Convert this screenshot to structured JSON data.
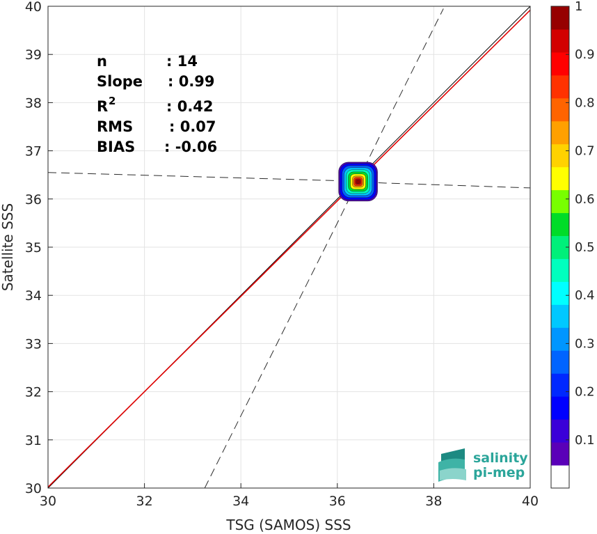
{
  "chart_data": {
    "type": "scatter",
    "xlabel": "TSG (SAMOS) SSS",
    "ylabel": "Satellite SSS",
    "xlim": [
      30,
      40
    ],
    "ylim": [
      30,
      40
    ],
    "xticks": [
      "30",
      "32",
      "34",
      "36",
      "38",
      "40"
    ],
    "yticks": [
      "30",
      "31",
      "32",
      "33",
      "34",
      "35",
      "36",
      "37",
      "38",
      "39",
      "40"
    ],
    "grid": true,
    "stats": [
      {
        "label": "n",
        "value": ": 14"
      },
      {
        "label": "Slope",
        "value": ": 0.99"
      },
      {
        "label": "R",
        "sup": "2",
        "value": ": 0.42"
      },
      {
        "label": "RMS",
        "value": ": 0.07"
      },
      {
        "label": "BIAS",
        "value": ": -0.06"
      }
    ],
    "identity_line": {
      "x": [
        30,
        40
      ],
      "y": [
        30,
        40
      ],
      "color": "#000000"
    },
    "fit_line": {
      "x": [
        30,
        40
      ],
      "y": [
        30.02,
        39.92
      ],
      "color": "#e00000"
    },
    "dashed_envelope_1": {
      "x": [
        33.25,
        36.0,
        37.0,
        38.2
      ],
      "y": [
        30,
        35.5,
        37.55,
        39.95
      ]
    },
    "dashed_envelope_2": {
      "x": [
        30,
        36.0,
        37.0,
        40
      ],
      "y": [
        36.55,
        36.38,
        36.33,
        36.23
      ]
    },
    "density_center": {
      "x": 36.43,
      "y": 36.36
    },
    "colorbar": {
      "ticks": [
        "0.1",
        "0.2",
        "0.3",
        "0.4",
        "0.5",
        "0.6",
        "0.7",
        "0.8",
        "0.9",
        "1"
      ],
      "tick_values": [
        0.1,
        0.2,
        0.3,
        0.4,
        0.5,
        0.6,
        0.7,
        0.8,
        0.9,
        1.0
      ],
      "colors": [
        "#ffffff",
        "#5a00b8",
        "#3a00d8",
        "#0000ff",
        "#0028ff",
        "#0064ff",
        "#0096ff",
        "#00c8ff",
        "#00ffff",
        "#00ffbe",
        "#00f07a",
        "#00dc28",
        "#78ff00",
        "#ffff00",
        "#ffd200",
        "#ffa000",
        "#ff6400",
        "#ff3200",
        "#ff0000",
        "#d20000",
        "#960000"
      ]
    }
  },
  "logo": {
    "line1": "salinity",
    "line2": "pi-mep"
  }
}
